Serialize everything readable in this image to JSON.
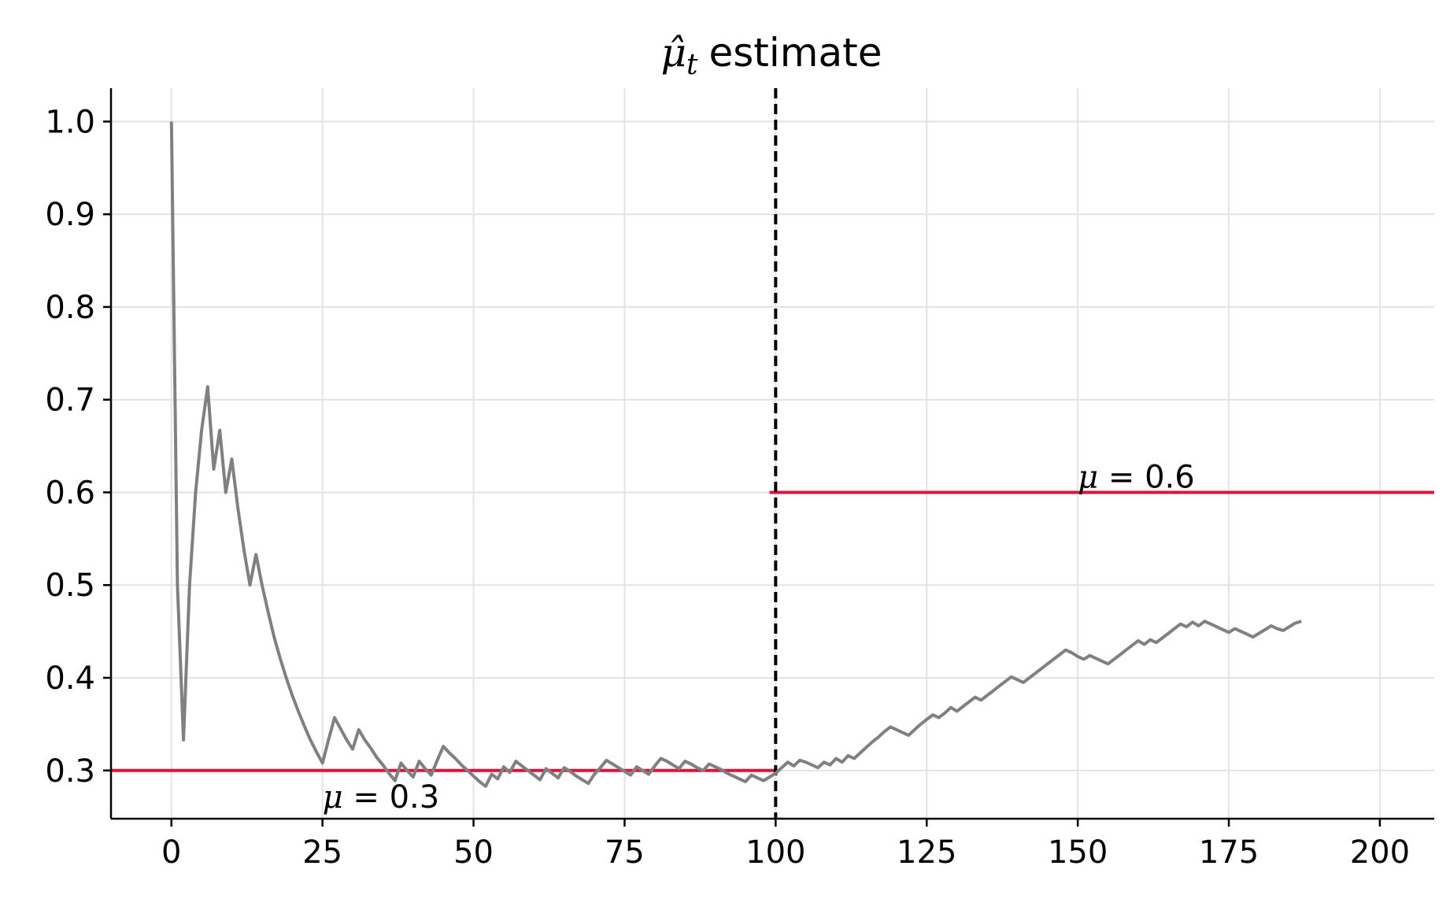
{
  "chart_data": {
    "type": "line",
    "title": "estimate",
    "title_symbol": "μ̂",
    "title_subscript": "t",
    "xlim": [
      -10,
      209
    ],
    "ylim": [
      0.248,
      1.036
    ],
    "xticks": [
      0,
      25,
      50,
      75,
      100,
      125,
      150,
      175,
      200
    ],
    "yticks": [
      0.3,
      0.4,
      0.5,
      0.6,
      0.7,
      0.8,
      0.9,
      1.0
    ],
    "xtick_labels": [
      "0",
      "25",
      "50",
      "75",
      "100",
      "125",
      "150",
      "175",
      "200"
    ],
    "ytick_labels": [
      "0.3",
      "0.4",
      "0.5",
      "0.6",
      "0.7",
      "0.8",
      "0.9",
      "1.0"
    ],
    "grid": true,
    "series": [
      {
        "color": "#808080",
        "points": [
          [
            0,
            1.0
          ],
          [
            1,
            0.5
          ],
          [
            2,
            0.333
          ],
          [
            3,
            0.5
          ],
          [
            4,
            0.6
          ],
          [
            5,
            0.667
          ],
          [
            6,
            0.714
          ],
          [
            7,
            0.625
          ],
          [
            8,
            0.667
          ],
          [
            9,
            0.6
          ],
          [
            10,
            0.636
          ],
          [
            11,
            0.583
          ],
          [
            12,
            0.538
          ],
          [
            13,
            0.5
          ],
          [
            14,
            0.533
          ],
          [
            15,
            0.5
          ],
          [
            16,
            0.471
          ],
          [
            17,
            0.444
          ],
          [
            18,
            0.421
          ],
          [
            19,
            0.4
          ],
          [
            20,
            0.381
          ],
          [
            21,
            0.364
          ],
          [
            22,
            0.348
          ],
          [
            23,
            0.333
          ],
          [
            24,
            0.32
          ],
          [
            25,
            0.308
          ],
          [
            26,
            0.333
          ],
          [
            27,
            0.357
          ],
          [
            28,
            0.345
          ],
          [
            29,
            0.333
          ],
          [
            30,
            0.323
          ],
          [
            31,
            0.344
          ],
          [
            32,
            0.333
          ],
          [
            33,
            0.324
          ],
          [
            34,
            0.314
          ],
          [
            35,
            0.306
          ],
          [
            36,
            0.297
          ],
          [
            37,
            0.289
          ],
          [
            38,
            0.308
          ],
          [
            39,
            0.3
          ],
          [
            40,
            0.293
          ],
          [
            41,
            0.31
          ],
          [
            42,
            0.302
          ],
          [
            43,
            0.295
          ],
          [
            44,
            0.311
          ],
          [
            45,
            0.326
          ],
          [
            46,
            0.319
          ],
          [
            47,
            0.313
          ],
          [
            48,
            0.306
          ],
          [
            49,
            0.3
          ],
          [
            50,
            0.294
          ],
          [
            51,
            0.288
          ],
          [
            52,
            0.283
          ],
          [
            53,
            0.296
          ],
          [
            54,
            0.291
          ],
          [
            55,
            0.304
          ],
          [
            56,
            0.298
          ],
          [
            57,
            0.31
          ],
          [
            58,
            0.305
          ],
          [
            59,
            0.3
          ],
          [
            60,
            0.295
          ],
          [
            61,
            0.29
          ],
          [
            62,
            0.302
          ],
          [
            63,
            0.297
          ],
          [
            64,
            0.292
          ],
          [
            65,
            0.303
          ],
          [
            66,
            0.299
          ],
          [
            67,
            0.294
          ],
          [
            68,
            0.29
          ],
          [
            69,
            0.286
          ],
          [
            70,
            0.296
          ],
          [
            71,
            0.303
          ],
          [
            72,
            0.311
          ],
          [
            73,
            0.307
          ],
          [
            74,
            0.303
          ],
          [
            75,
            0.299
          ],
          [
            76,
            0.295
          ],
          [
            77,
            0.304
          ],
          [
            78,
            0.3
          ],
          [
            79,
            0.296
          ],
          [
            80,
            0.305
          ],
          [
            81,
            0.313
          ],
          [
            82,
            0.31
          ],
          [
            83,
            0.306
          ],
          [
            84,
            0.302
          ],
          [
            85,
            0.31
          ],
          [
            86,
            0.307
          ],
          [
            87,
            0.303
          ],
          [
            88,
            0.3
          ],
          [
            89,
            0.307
          ],
          [
            90,
            0.304
          ],
          [
            91,
            0.301
          ],
          [
            92,
            0.297
          ],
          [
            93,
            0.294
          ],
          [
            94,
            0.291
          ],
          [
            95,
            0.288
          ],
          [
            96,
            0.295
          ],
          [
            97,
            0.292
          ],
          [
            98,
            0.289
          ],
          [
            99,
            0.293
          ],
          [
            100,
            0.297
          ],
          [
            101,
            0.303
          ],
          [
            102,
            0.309
          ],
          [
            103,
            0.305
          ],
          [
            104,
            0.311
          ],
          [
            105,
            0.309
          ],
          [
            106,
            0.306
          ],
          [
            107,
            0.303
          ],
          [
            108,
            0.309
          ],
          [
            109,
            0.306
          ],
          [
            110,
            0.313
          ],
          [
            111,
            0.309
          ],
          [
            112,
            0.316
          ],
          [
            113,
            0.313
          ],
          [
            114,
            0.319
          ],
          [
            115,
            0.325
          ],
          [
            116,
            0.331
          ],
          [
            117,
            0.336
          ],
          [
            118,
            0.342
          ],
          [
            119,
            0.347
          ],
          [
            120,
            0.344
          ],
          [
            121,
            0.341
          ],
          [
            122,
            0.338
          ],
          [
            123,
            0.344
          ],
          [
            124,
            0.35
          ],
          [
            125,
            0.355
          ],
          [
            126,
            0.36
          ],
          [
            127,
            0.357
          ],
          [
            128,
            0.362
          ],
          [
            129,
            0.368
          ],
          [
            130,
            0.364
          ],
          [
            131,
            0.369
          ],
          [
            132,
            0.374
          ],
          [
            133,
            0.379
          ],
          [
            134,
            0.376
          ],
          [
            135,
            0.381
          ],
          [
            136,
            0.386
          ],
          [
            137,
            0.391
          ],
          [
            138,
            0.396
          ],
          [
            139,
            0.401
          ],
          [
            140,
            0.398
          ],
          [
            141,
            0.395
          ],
          [
            142,
            0.4
          ],
          [
            143,
            0.405
          ],
          [
            144,
            0.41
          ],
          [
            145,
            0.415
          ],
          [
            146,
            0.42
          ],
          [
            147,
            0.425
          ],
          [
            148,
            0.43
          ],
          [
            149,
            0.427
          ],
          [
            150,
            0.423
          ],
          [
            151,
            0.42
          ],
          [
            152,
            0.424
          ],
          [
            153,
            0.421
          ],
          [
            154,
            0.418
          ],
          [
            155,
            0.415
          ],
          [
            156,
            0.42
          ],
          [
            157,
            0.425
          ],
          [
            158,
            0.43
          ],
          [
            159,
            0.435
          ],
          [
            160,
            0.44
          ],
          [
            161,
            0.436
          ],
          [
            162,
            0.441
          ],
          [
            163,
            0.438
          ],
          [
            164,
            0.443
          ],
          [
            165,
            0.448
          ],
          [
            166,
            0.453
          ],
          [
            167,
            0.458
          ],
          [
            168,
            0.455
          ],
          [
            169,
            0.46
          ],
          [
            170,
            0.456
          ],
          [
            171,
            0.461
          ],
          [
            172,
            0.458
          ],
          [
            173,
            0.455
          ],
          [
            174,
            0.452
          ],
          [
            175,
            0.449
          ],
          [
            176,
            0.453
          ],
          [
            177,
            0.45
          ],
          [
            178,
            0.447
          ],
          [
            179,
            0.444
          ],
          [
            180,
            0.448
          ],
          [
            181,
            0.452
          ],
          [
            182,
            0.456
          ],
          [
            183,
            0.453
          ],
          [
            184,
            0.451
          ],
          [
            185,
            0.455
          ],
          [
            186,
            0.459
          ],
          [
            187,
            0.461
          ]
        ]
      }
    ],
    "reference_lines": [
      {
        "orientation": "horizontal",
        "y": 0.3,
        "x_start": -10,
        "x_end": 100,
        "color": "#dc143c"
      },
      {
        "orientation": "horizontal",
        "y": 0.6,
        "x_start": 99,
        "x_end": 209,
        "color": "#dc143c"
      },
      {
        "orientation": "vertical",
        "x": 100,
        "style": "dashed",
        "color": "#000000"
      }
    ],
    "annotations": [
      {
        "symbol": "μ",
        "text": " = 0.3",
        "x": 25,
        "y": 0.26
      },
      {
        "symbol": "μ",
        "text": " = 0.6",
        "x": 150,
        "y": 0.605
      }
    ]
  }
}
